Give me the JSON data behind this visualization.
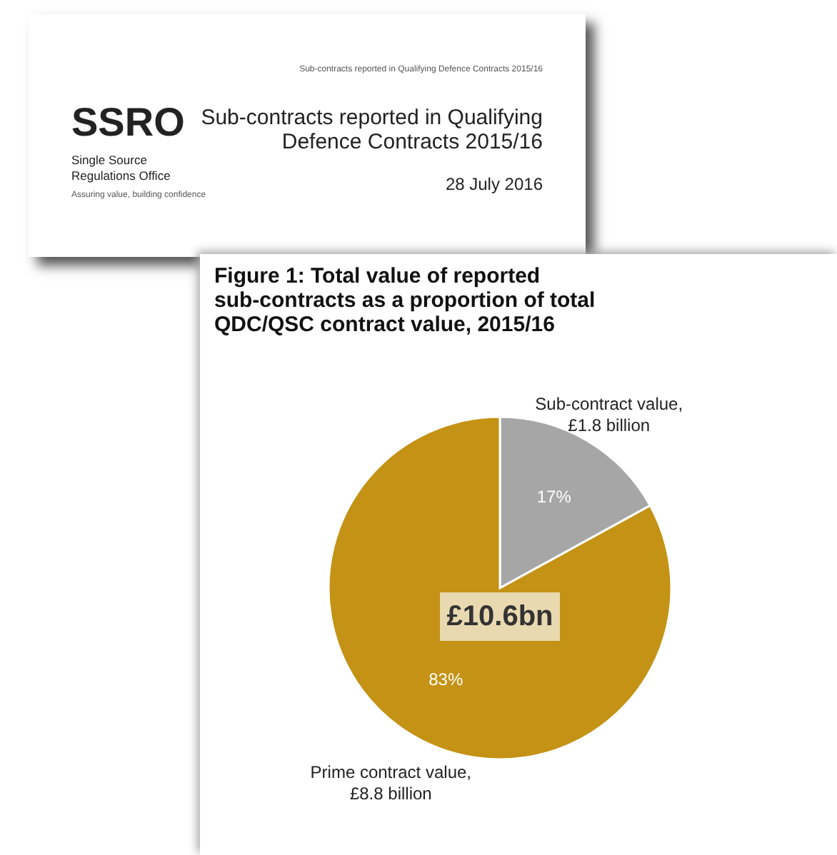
{
  "chart_data": {
    "type": "pie",
    "title": "Figure 1: Total value of reported sub-contracts as a proportion of total QDC/QSC contract value, 2015/16",
    "categories": [
      "Sub-contract value, £1.8 billion",
      "Prime contract value, £8.8 billion"
    ],
    "values": [
      17,
      83
    ],
    "colors": [
      "#a6a6a6",
      "#c49214"
    ],
    "value_labels": [
      "17%",
      "83%"
    ],
    "annotations": [
      "£10.6bn",
      "Sub-contracts reported in Qualifying Defence Contracts 2015/16",
      "SSRO",
      "Single Source Regulations Office",
      "Assuring value, building confidence",
      "Sub-contracts reported in Qualifying Defence Contracts 2015/16",
      "28 July 2016"
    ]
  }
}
